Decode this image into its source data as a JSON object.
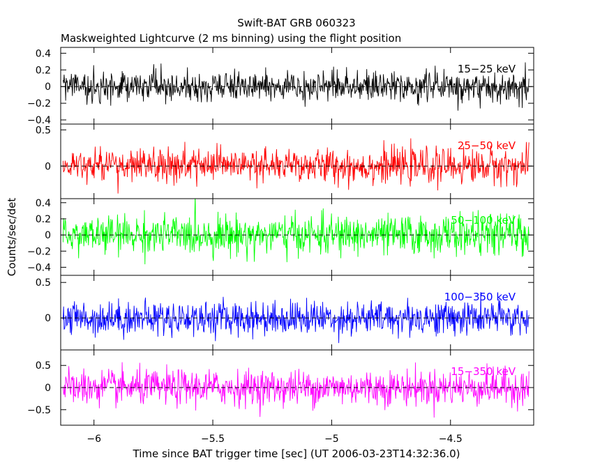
{
  "chart_data": {
    "type": "line",
    "title": "Swift-BAT GRB 060323",
    "subtitle": "Maskweighted Lightcurve (2 ms binning) using the flight position",
    "xlabel": "Time since BAT trigger time [sec] (UT 2006-03-23T14:32:36.0)",
    "ylabel": "Counts/sec/det",
    "xlim": [
      -6.14,
      -4.15
    ],
    "data_xrange": [
      -6.13,
      -4.17
    ],
    "x_ticks": [
      -6,
      -5.5,
      -5,
      -4.5
    ],
    "x_tick_labels": [
      "−6",
      "−5.5",
      "−5",
      "−4.5"
    ],
    "grid": false,
    "panels": [
      {
        "name": "15-25 keV",
        "label": "15−25 keV",
        "color": "#000000",
        "ylim": [
          -0.45,
          0.47
        ],
        "yticks": [
          -0.4,
          -0.2,
          0,
          0.2,
          0.4
        ],
        "ytick_labels": [
          "−0.4",
          "−0.2",
          "0",
          "0.2",
          "0.4"
        ],
        "noise_sigma": 0.09
      },
      {
        "name": "25-50 keV",
        "label": "25−50 keV",
        "color": "#ff0000",
        "ylim": [
          -0.45,
          0.58
        ],
        "yticks": [
          0,
          0.5
        ],
        "ytick_labels": [
          "0",
          "0.5"
        ],
        "noise_sigma": 0.12
      },
      {
        "name": "50-100 keV",
        "label": "50−100 keV",
        "color": "#00ff00",
        "ylim": [
          -0.5,
          0.45
        ],
        "yticks": [
          -0.4,
          -0.2,
          0,
          0.2,
          0.4
        ],
        "ytick_labels": [
          "−0.4",
          "−0.2",
          "0",
          "0.2",
          "0.4"
        ],
        "noise_sigma": 0.12
      },
      {
        "name": "100-350 keV",
        "label": "100−350 keV",
        "color": "#0000ff",
        "ylim": [
          -0.45,
          0.6
        ],
        "yticks": [
          0,
          0.5
        ],
        "ytick_labels": [
          "0",
          "0.5"
        ],
        "noise_sigma": 0.12
      },
      {
        "name": "15-350 keV",
        "label": "15−350 keV",
        "color": "#ff00ff",
        "ylim": [
          -0.85,
          0.85
        ],
        "yticks": [
          -0.5,
          0,
          0.5
        ],
        "ytick_labels": [
          "−0.5",
          "0",
          "0.5"
        ],
        "noise_sigma": 0.2
      }
    ]
  }
}
